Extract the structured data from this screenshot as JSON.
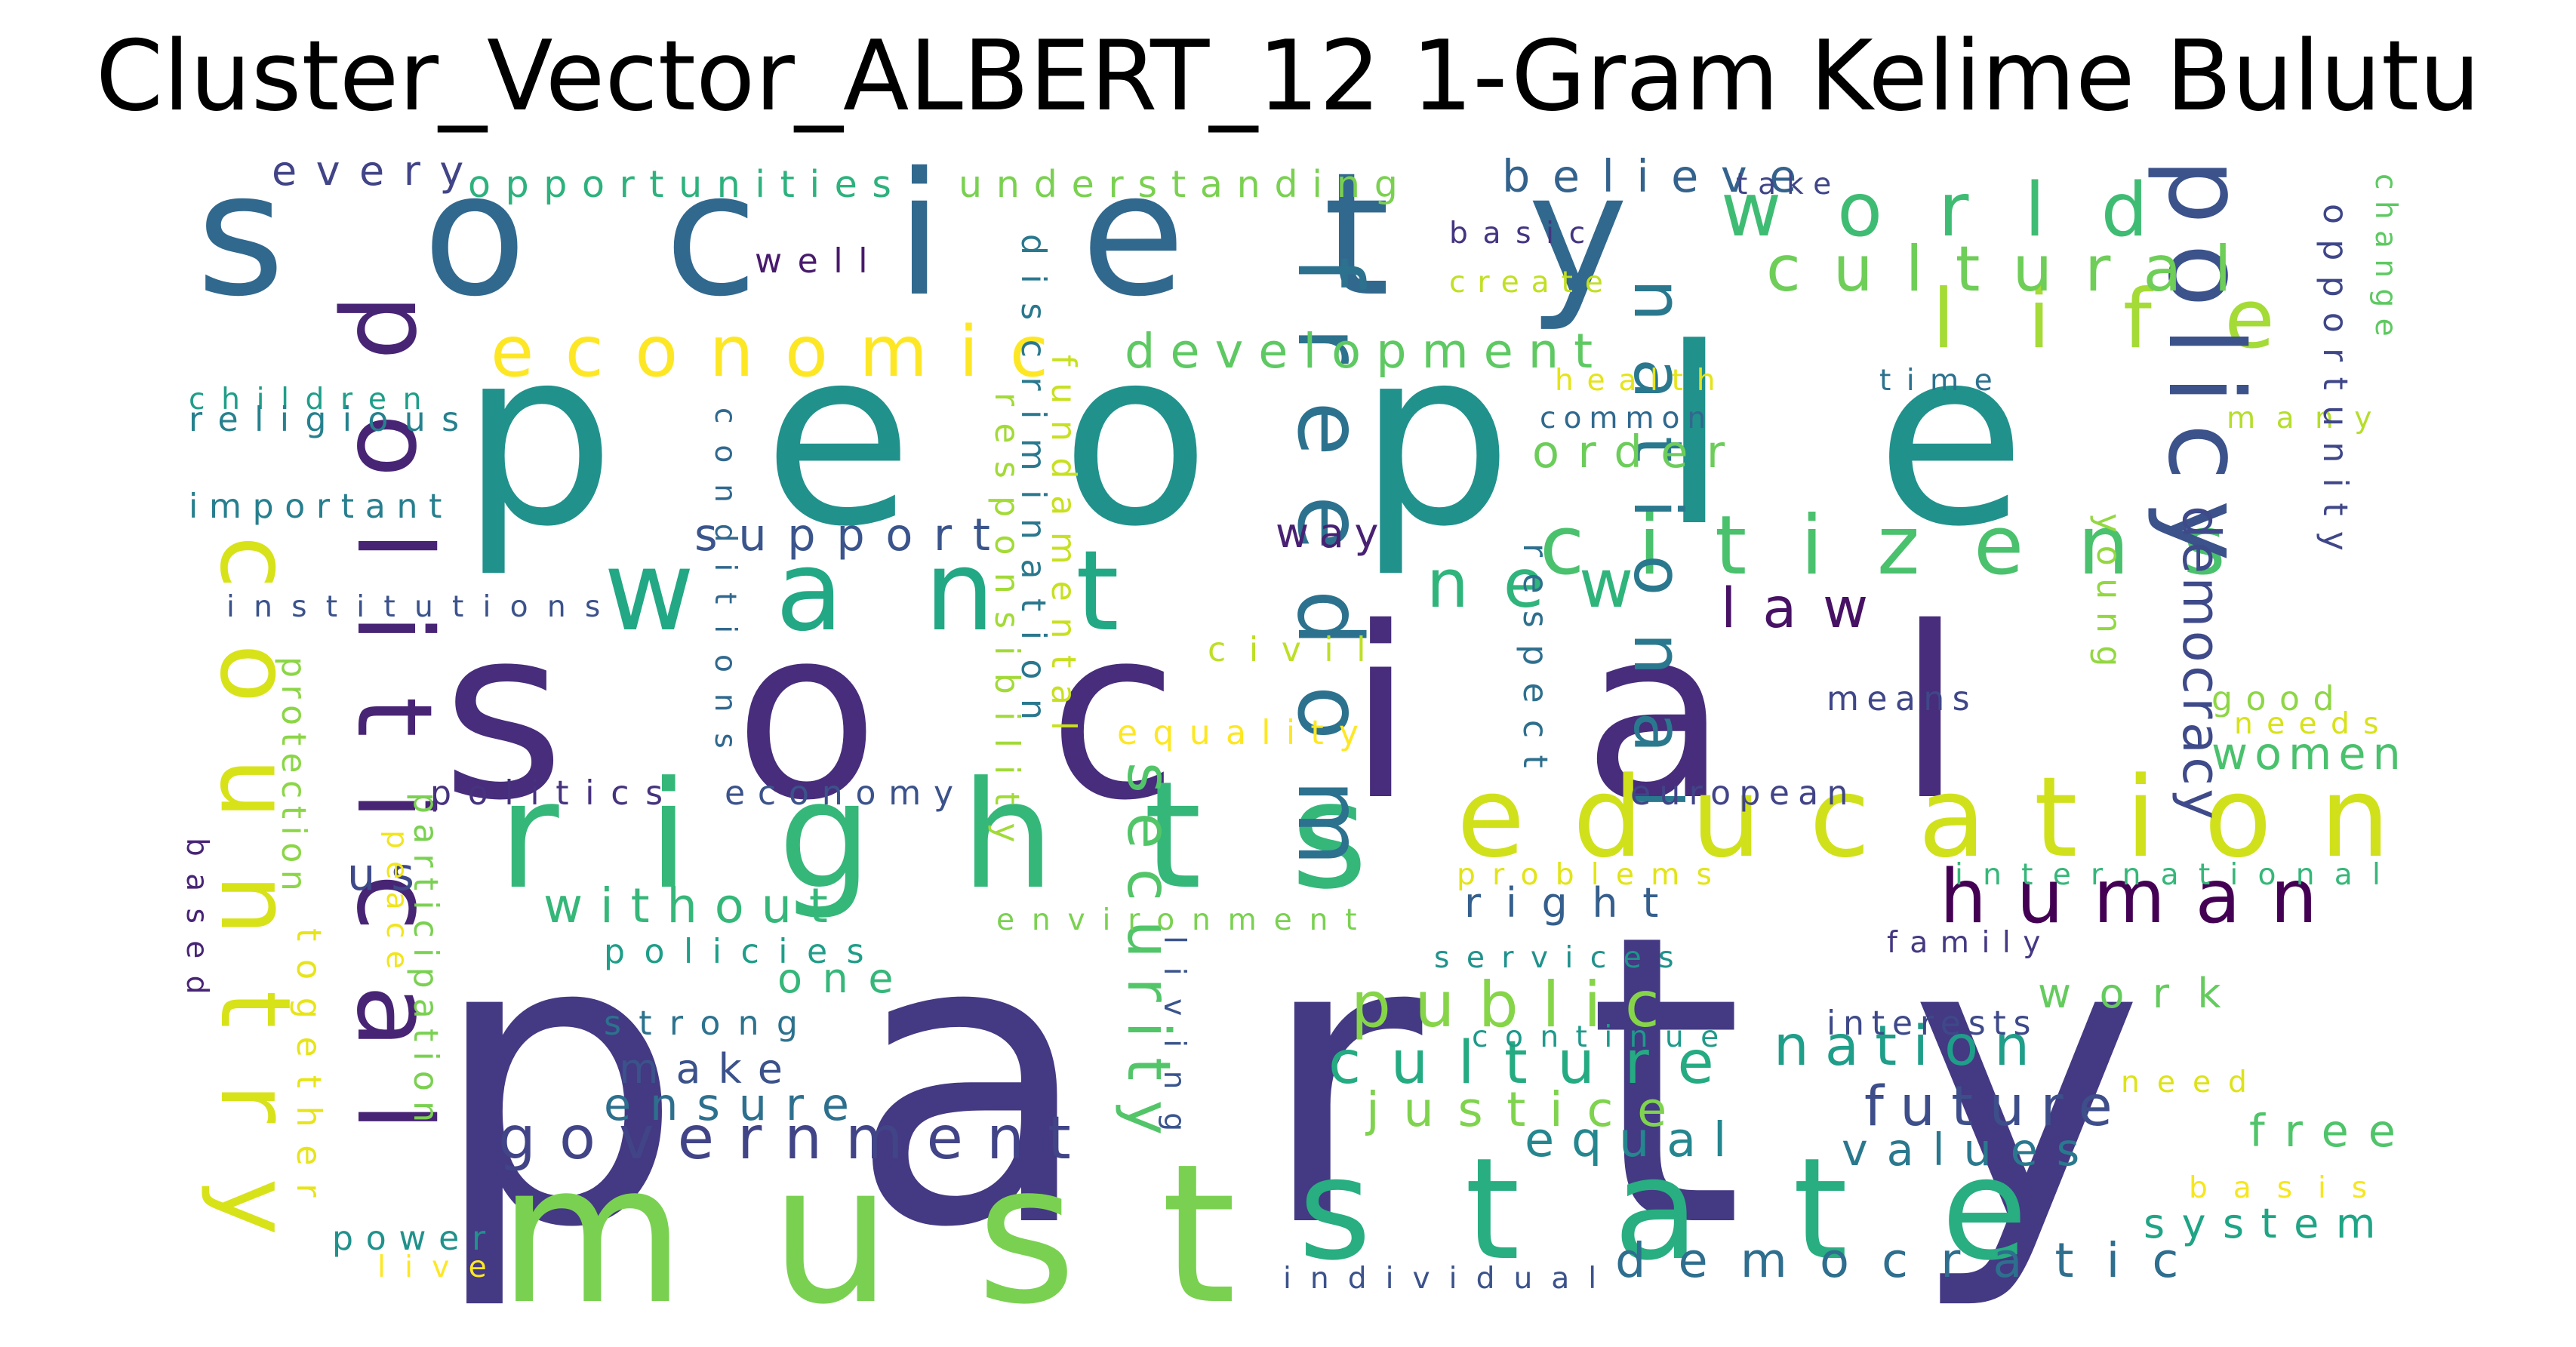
{
  "title": "Cluster_Vector_ALBERT_12 1-Gram Kelime Bulutu",
  "words": [
    {
      "text": "party",
      "color": "#443983"
    },
    {
      "text": "social",
      "color": "#472d7b"
    },
    {
      "text": "people",
      "color": "#21918c"
    },
    {
      "text": "society",
      "color": "#31688e"
    },
    {
      "text": "must",
      "color": "#7ad151"
    },
    {
      "text": "state",
      "color": "#28ae80"
    },
    {
      "text": "rights",
      "color": "#35b779"
    },
    {
      "text": "want",
      "color": "#22a884"
    },
    {
      "text": "country",
      "color": "#d8e219"
    },
    {
      "text": "political",
      "color": "#482475"
    },
    {
      "text": "education",
      "color": "#d0e11c"
    },
    {
      "text": "citizens",
      "color": "#4ac16d"
    },
    {
      "text": "world",
      "color": "#3fbc73"
    },
    {
      "text": "life",
      "color": "#a5db36"
    },
    {
      "text": "policy",
      "color": "#3b528b"
    },
    {
      "text": "freedom",
      "color": "#2c728e"
    },
    {
      "text": "national",
      "color": "#2a788e"
    },
    {
      "text": "cultural",
      "color": "#6ece58"
    },
    {
      "text": "economic",
      "color": "#fde725"
    },
    {
      "text": "human",
      "color": "#440154"
    },
    {
      "text": "new",
      "color": "#2fb47c"
    },
    {
      "text": "development",
      "color": "#5ec962"
    },
    {
      "text": "public",
      "color": "#86d549"
    },
    {
      "text": "culture",
      "color": "#25ab82"
    },
    {
      "text": "government",
      "color": "#414487"
    },
    {
      "text": "security",
      "color": "#52c569"
    },
    {
      "text": "democratic",
      "color": "#2e6e8e"
    },
    {
      "text": "democracy",
      "color": "#3e4a89"
    },
    {
      "text": "justice",
      "color": "#7fd34e"
    },
    {
      "text": "nation",
      "color": "#1f9e89"
    },
    {
      "text": "future",
      "color": "#3d4e8a"
    },
    {
      "text": "without",
      "color": "#35b779"
    },
    {
      "text": "believe",
      "color": "#33638d"
    },
    {
      "text": "women",
      "color": "#4ac16d"
    },
    {
      "text": "right",
      "color": "#355f8d"
    },
    {
      "text": "support",
      "color": "#3a548c"
    },
    {
      "text": "order",
      "color": "#6ccd5a"
    },
    {
      "text": "law",
      "color": "#471164"
    },
    {
      "text": "way",
      "color": "#482173"
    },
    {
      "text": "make",
      "color": "#3b528b"
    },
    {
      "text": "ensure",
      "color": "#2d708e"
    },
    {
      "text": "equal",
      "color": "#24868e"
    },
    {
      "text": "values",
      "color": "#2a788e"
    },
    {
      "text": "system",
      "color": "#20a486"
    },
    {
      "text": "work",
      "color": "#65cb5e"
    },
    {
      "text": "one",
      "color": "#35b779"
    },
    {
      "text": "us",
      "color": "#3e4989"
    },
    {
      "text": "free",
      "color": "#50c46a"
    },
    {
      "text": "every",
      "color": "#414487"
    },
    {
      "text": "opportunities",
      "color": "#2db27d"
    },
    {
      "text": "understanding",
      "color": "#7ad151"
    },
    {
      "text": "take",
      "color": "#404688"
    },
    {
      "text": "well",
      "color": "#481a6c"
    },
    {
      "text": "basic",
      "color": "#453581"
    },
    {
      "text": "create",
      "color": "#c2df23"
    },
    {
      "text": "children",
      "color": "#1f9e89"
    },
    {
      "text": "religious",
      "color": "#26818e"
    },
    {
      "text": "health",
      "color": "#e5e419"
    },
    {
      "text": "time",
      "color": "#2c728e"
    },
    {
      "text": "common",
      "color": "#30698e"
    },
    {
      "text": "many",
      "color": "#b5de2b"
    },
    {
      "text": "important",
      "color": "#277f8e"
    },
    {
      "text": "institutions",
      "color": "#3b528b"
    },
    {
      "text": "civil",
      "color": "#bddf26"
    },
    {
      "text": "equality",
      "color": "#fde725"
    },
    {
      "text": "means",
      "color": "#3f4788"
    },
    {
      "text": "good",
      "color": "#8ed645"
    },
    {
      "text": "needs",
      "color": "#d8e219"
    },
    {
      "text": "politics",
      "color": "#46327e"
    },
    {
      "text": "economy",
      "color": "#3b528b"
    },
    {
      "text": "european",
      "color": "#414487"
    },
    {
      "text": "problems",
      "color": "#e2e418"
    },
    {
      "text": "international",
      "color": "#35b779"
    },
    {
      "text": "environment",
      "color": "#7ad151"
    },
    {
      "text": "family",
      "color": "#443983"
    },
    {
      "text": "services",
      "color": "#20928c"
    },
    {
      "text": "policies",
      "color": "#1f9e89"
    },
    {
      "text": "strong",
      "color": "#2c728e"
    },
    {
      "text": "interests",
      "color": "#3e4989"
    },
    {
      "text": "continue",
      "color": "#1f9a8a"
    },
    {
      "text": "need",
      "color": "#dde318"
    },
    {
      "text": "basis",
      "color": "#f6e620"
    },
    {
      "text": "power",
      "color": "#21918c"
    },
    {
      "text": "live",
      "color": "#fde725"
    },
    {
      "text": "individual",
      "color": "#3b528b"
    },
    {
      "text": "conditions",
      "color": "#31688e"
    },
    {
      "text": "responsibility",
      "color": "#a2da37"
    },
    {
      "text": "discrimination",
      "color": "#2a788e"
    },
    {
      "text": "fundamental",
      "color": "#c8e020"
    },
    {
      "text": "respect",
      "color": "#2e6f8e"
    },
    {
      "text": "young",
      "color": "#93d741"
    },
    {
      "text": "opportunity",
      "color": "#3f4788"
    },
    {
      "text": "change",
      "color": "#5ec962"
    },
    {
      "text": "protection",
      "color": "#8bd646"
    },
    {
      "text": "based",
      "color": "#482475"
    },
    {
      "text": "together",
      "color": "#e7e419"
    },
    {
      "text": "participation",
      "color": "#7ad151"
    },
    {
      "text": "peace",
      "color": "#f1e51d"
    },
    {
      "text": "living",
      "color": "#3a548c"
    }
  ]
}
